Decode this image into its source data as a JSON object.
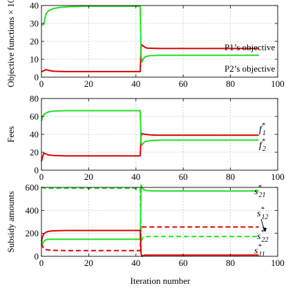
{
  "colors": {
    "red": "#dd0000",
    "green": "#22dd22",
    "grid": "#b8b8b8",
    "axis": "#000000"
  },
  "xlabel": "Iteration number",
  "chart_data": [
    {
      "type": "line",
      "xlim": [
        0,
        100
      ],
      "ylim": [
        0,
        40
      ],
      "xticks": [
        "0",
        "20",
        "40",
        "60",
        "80",
        "100"
      ],
      "yticks": [
        "0",
        "10",
        "20",
        "30",
        "40"
      ],
      "ylabel": "Objective functions × 10",
      "ylabel_exp": "3",
      "grid": true,
      "series": [
        {
          "name": "P1’s objective",
          "color": "#dd0000",
          "dash": false,
          "x": [
            0,
            1,
            2,
            3,
            5,
            10,
            20,
            30,
            41.8,
            42.2,
            42.6,
            43,
            44,
            45,
            50,
            60,
            70,
            80,
            92
          ],
          "y": [
            3.0,
            3.6,
            4.2,
            3.8,
            3.3,
            3.1,
            3.1,
            3.1,
            3.1,
            17.0,
            18.0,
            17.5,
            16.5,
            16.2,
            16.0,
            16.0,
            16.0,
            16.0,
            16.0
          ]
        },
        {
          "name": "P2’s objective",
          "color": "#22dd22",
          "dash": false,
          "x": [
            0,
            1,
            1.5,
            2,
            3,
            5,
            8,
            12,
            20,
            30,
            41.8,
            42.2,
            42.6,
            43,
            44,
            46,
            50,
            60,
            70,
            80,
            92
          ],
          "y": [
            29.0,
            29.5,
            33.0,
            35.5,
            37.0,
            38.3,
            39.0,
            39.4,
            39.6,
            39.6,
            39.6,
            11.5,
            8.5,
            10.0,
            11.5,
            12.0,
            12.2,
            12.2,
            12.2,
            12.2,
            12.2
          ]
        }
      ],
      "annotations": [
        "P1’s objective",
        "P2’s objective"
      ]
    },
    {
      "type": "line",
      "xlim": [
        0,
        100
      ],
      "ylim": [
        0,
        80
      ],
      "xticks": [
        "0",
        "20",
        "40",
        "60",
        "80",
        "100"
      ],
      "yticks": [
        "0",
        "20",
        "40",
        "60",
        "80"
      ],
      "ylabel": "Fees",
      "grid": true,
      "series": [
        {
          "label": "f",
          "sub": "1",
          "sup": "*",
          "color": "#dd0000",
          "dash": false,
          "x": [
            0,
            0.5,
            1,
            2,
            3,
            5,
            10,
            20,
            30,
            41.8,
            42.2,
            42.6,
            43,
            44,
            46,
            50,
            60,
            70,
            80,
            92
          ],
          "y": [
            10,
            15,
            19,
            18,
            17,
            16.5,
            16,
            16,
            16,
            16,
            38,
            41,
            40.5,
            40,
            39.5,
            39,
            39,
            39,
            39,
            39
          ]
        },
        {
          "label": "f",
          "sub": "2",
          "sup": "*",
          "color": "#22dd22",
          "dash": false,
          "x": [
            0,
            0.5,
            1,
            2,
            3,
            5,
            10,
            20,
            30,
            41.8,
            42.2,
            42.6,
            43,
            44,
            46,
            50,
            60,
            70,
            80,
            92
          ],
          "y": [
            55,
            60,
            62,
            64,
            65,
            66,
            66.5,
            66.5,
            66.5,
            66.5,
            30,
            28,
            30,
            32,
            33,
            33.5,
            33.5,
            33.5,
            33.5,
            33.5
          ]
        }
      ]
    },
    {
      "type": "line",
      "xlim": [
        0,
        100
      ],
      "ylim": [
        0,
        600
      ],
      "xticks": [
        "0",
        "20",
        "40",
        "60",
        "80",
        "100"
      ],
      "yticks": [
        "0",
        "200",
        "400",
        "600"
      ],
      "ylabel": "Subsidy amounts",
      "grid": true,
      "series": [
        {
          "label": "s",
          "sub": "21",
          "sup": "*",
          "color": "#22dd22",
          "dash": false,
          "x": [
            0,
            0.5,
            1,
            2,
            3,
            5,
            10,
            20,
            30,
            41.8,
            42.2,
            42.6,
            43,
            44,
            46,
            50,
            60,
            70,
            80,
            92
          ],
          "y": [
            140,
            110,
            130,
            145,
            148,
            148,
            148,
            148,
            148,
            148,
            620,
            600,
            585,
            575,
            570,
            568,
            568,
            568,
            568,
            568
          ]
        },
        {
          "label": "s",
          "sub": "12",
          "sup": "*",
          "color": "#dd0000",
          "dash": true,
          "x": [
            0,
            0.5,
            1,
            2,
            3,
            5,
            10,
            20,
            30,
            41.8,
            42.2,
            42.6,
            43,
            44,
            46,
            50,
            60,
            70,
            80,
            92
          ],
          "y": [
            110,
            85,
            65,
            58,
            55,
            52,
            50,
            50,
            50,
            50,
            270,
            258,
            255,
            255,
            255,
            255,
            255,
            255,
            255,
            255
          ]
        },
        {
          "label": "s",
          "sub": "22",
          "sup": "*",
          "color": "#22dd22",
          "dash": true,
          "x": [
            0,
            0.5,
            1,
            2,
            3,
            5,
            10,
            20,
            30,
            40,
            41,
            41.5,
            41.8,
            42.2,
            42.6,
            43,
            44,
            46,
            50,
            60,
            70,
            80,
            92
          ],
          "y": [
            605,
            600,
            595,
            592,
            592,
            592,
            592,
            592,
            592,
            592,
            592,
            592,
            592,
            130,
            150,
            165,
            170,
            172,
            172,
            172,
            172,
            172,
            172
          ]
        },
        {
          "label": "s",
          "sub": "11",
          "sup": "*",
          "color": "#dd0000",
          "dash": false,
          "x": [
            0,
            0.5,
            1,
            2,
            3,
            5,
            10,
            20,
            30,
            41.8,
            42.2,
            42.6,
            43,
            44,
            46,
            50,
            60,
            70,
            80,
            92
          ],
          "y": [
            130,
            175,
            195,
            210,
            218,
            222,
            225,
            225,
            225,
            225,
            20,
            0,
            8,
            10,
            10,
            10,
            10,
            10,
            10,
            10
          ]
        }
      ]
    }
  ]
}
